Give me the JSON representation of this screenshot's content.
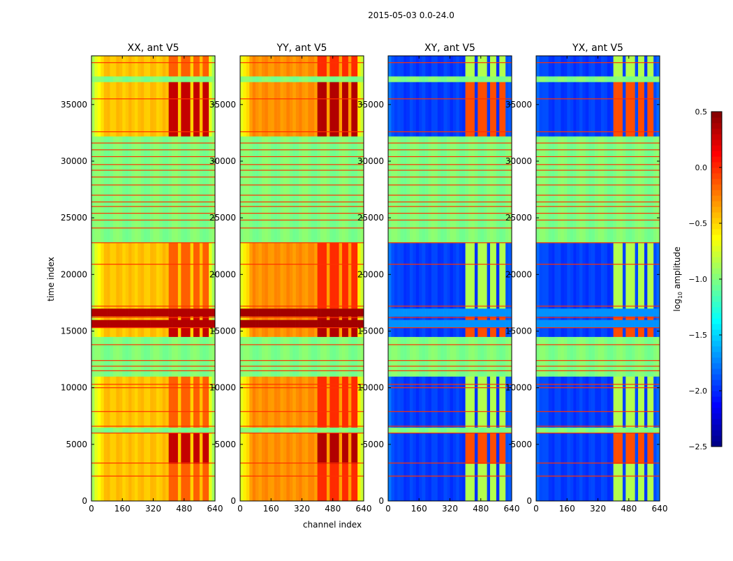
{
  "chart_data": {
    "type": "heatmap",
    "title": "2015-05-03 0.0-24.0",
    "ylabel": "time index",
    "xlabel": "channel index",
    "xlim": [
      0,
      640
    ],
    "ylim": [
      0,
      39300
    ],
    "xticks": [
      "0",
      "160",
      "320",
      "480",
      "640"
    ],
    "xtick_values": [
      0,
      160,
      320,
      480,
      640
    ],
    "yticks": [
      "0",
      "5000",
      "10000",
      "15000",
      "20000",
      "25000",
      "30000",
      "35000"
    ],
    "ytick_values": [
      0,
      5000,
      10000,
      15000,
      20000,
      25000,
      30000,
      35000
    ],
    "colorbar": {
      "label_main": "log",
      "label_sub": "10",
      "label_rest": " amplitude",
      "range": [
        -2.5,
        0.5
      ],
      "colormap": "jet",
      "ticks": [
        "0.5",
        "0.0",
        "−0.5",
        "−1.0",
        "−1.5",
        "−2.0",
        "−2.5"
      ],
      "tick_values": [
        0.5,
        0.0,
        -0.5,
        -1.0,
        -1.5,
        -2.0,
        -2.5
      ]
    },
    "rfi_channels": [
      [
        400,
        455
      ],
      [
        465,
        520
      ],
      [
        530,
        568
      ],
      [
        578,
        610
      ]
    ],
    "flag_value": -1.0,
    "time_segments": [
      {
        "t": [
          0,
          3300
        ],
        "state": "normal"
      },
      {
        "t": [
          3300,
          6000
        ],
        "state": "strong_rfi"
      },
      {
        "t": [
          6000,
          6500
        ],
        "state": "flagged"
      },
      {
        "t": [
          6500,
          11000
        ],
        "state": "rfi"
      },
      {
        "t": [
          11000,
          14500
        ],
        "state": "flagged"
      },
      {
        "t": [
          14500,
          15300
        ],
        "state": "strong_rfi"
      },
      {
        "t": [
          15300,
          16000
        ],
        "state": "high"
      },
      {
        "t": [
          16000,
          16300
        ],
        "state": "strong_rfi"
      },
      {
        "t": [
          16300,
          17000
        ],
        "state": "high"
      },
      {
        "t": [
          17000,
          22800
        ],
        "state": "rfi"
      },
      {
        "t": [
          22800,
          24200
        ],
        "state": "flagged"
      },
      {
        "t": [
          24200,
          32200
        ],
        "state": "flagged"
      },
      {
        "t": [
          32200,
          37000
        ],
        "state": "strong_rfi"
      },
      {
        "t": [
          37000,
          37500
        ],
        "state": "flagged"
      },
      {
        "t": [
          37500,
          39300
        ],
        "state": "rfi"
      }
    ],
    "red_lines": [
      2200,
      3350,
      6000,
      6600,
      7900,
      10000,
      10300,
      11500,
      11900,
      12400,
      13800,
      15300,
      16200,
      17200,
      20900,
      22800,
      24100,
      24800,
      25400,
      26000,
      26400,
      27000,
      27900,
      28600,
      29200,
      29700,
      30400,
      31000,
      31600,
      32600,
      35500,
      38700
    ],
    "panels": [
      {
        "title": "XX, ant V5",
        "base": -0.45,
        "edge": -0.95,
        "rfi": -0.15,
        "strong": 0.3,
        "high": 0.35
      },
      {
        "title": "YY, ant V5",
        "base": -0.3,
        "edge": -0.8,
        "rfi": 0.0,
        "strong": 0.35,
        "high": 0.4
      },
      {
        "title": "XY, ant V5",
        "base": -1.95,
        "edge": -1.8,
        "rfi": -0.85,
        "strong": -0.1,
        "high": -1.7
      },
      {
        "title": "YX, ant V5",
        "base": -1.95,
        "edge": -1.8,
        "rfi": -0.85,
        "strong": -0.1,
        "high": -1.7
      }
    ]
  }
}
